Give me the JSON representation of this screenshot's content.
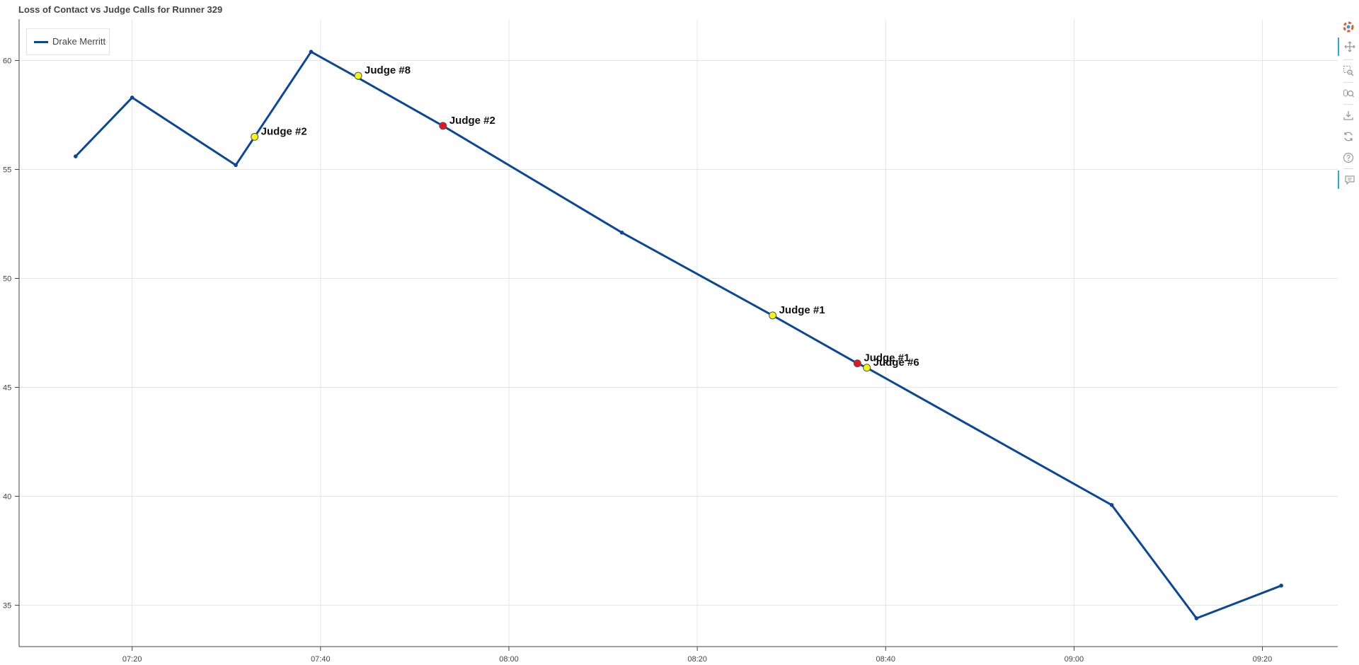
{
  "chart_data": {
    "type": "line",
    "title": "Loss of Contact vs Judge Calls for Runner 329",
    "xlabel": "",
    "ylabel": "",
    "x_tick_labels": [
      "07:20",
      "07:40",
      "08:00",
      "08:20",
      "08:40",
      "09:00",
      "09:20"
    ],
    "x_ticks": [
      "07:20",
      "07:40",
      "08:00",
      "08:20",
      "08:40",
      "09:00",
      "09:20"
    ],
    "xlim": [
      "07:08",
      "09:28"
    ],
    "y_ticks": [
      35,
      40,
      45,
      50,
      55,
      60
    ],
    "ylim": [
      33.1,
      61.9
    ],
    "grid": true,
    "legend_position": "top-left",
    "series": [
      {
        "name": "Drake Merritt",
        "color": "#0b4796",
        "x": [
          "07:14",
          "07:20",
          "07:31",
          "07:39",
          "07:44",
          "07:53",
          "08:12",
          "08:28",
          "08:37",
          "08:38",
          "09:04",
          "09:13",
          "09:22"
        ],
        "y": [
          55.6,
          58.3,
          55.2,
          60.4,
          59.2,
          57.0,
          52.1,
          48.3,
          46.1,
          45.9,
          39.6,
          34.4,
          35.9
        ]
      }
    ],
    "judge_calls": [
      {
        "x": "07:33",
        "y": 56.5,
        "label": "Judge #2",
        "color": "#f5f50f"
      },
      {
        "x": "07:44",
        "y": 59.3,
        "label": "Judge #8",
        "color": "#f5f50f"
      },
      {
        "x": "07:53",
        "y": 57.0,
        "label": "Judge #2",
        "color": "#e8141e"
      },
      {
        "x": "08:28",
        "y": 48.3,
        "label": "Judge #1",
        "color": "#f5f50f"
      },
      {
        "x": "08:37",
        "y": 46.1,
        "label": "Judge #1",
        "color": "#e8141e"
      },
      {
        "x": "08:38",
        "y": 45.9,
        "label": "Judge #6",
        "color": "#f5f50f"
      }
    ]
  },
  "toolbar": {
    "items": [
      "bokeh-logo-icon",
      "pan-icon",
      "box-zoom-icon",
      "wheel-zoom-icon",
      "save-icon",
      "reset-icon",
      "help-icon",
      "hover-icon"
    ]
  }
}
